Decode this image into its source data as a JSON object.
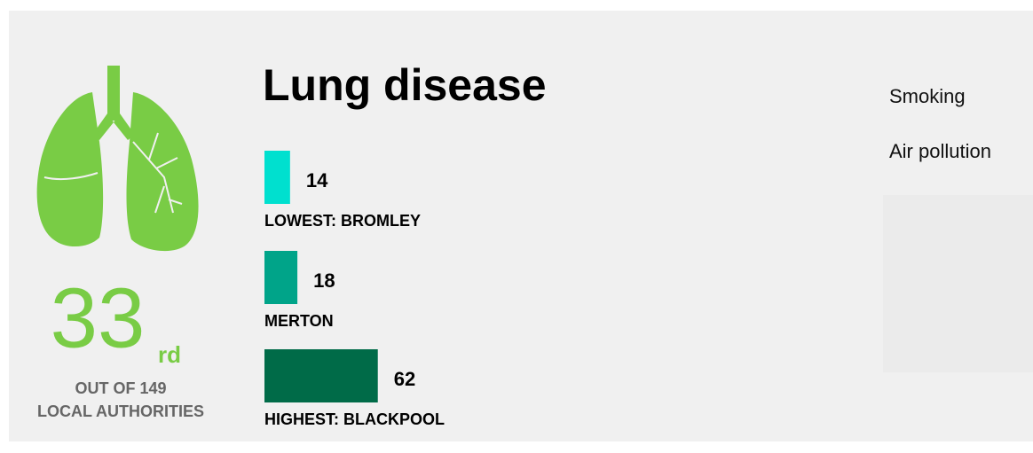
{
  "rank": {
    "number": "33",
    "suffix": "rd",
    "caption_line1": "OUT OF 149",
    "caption_line2": "LOCAL AUTHORITIES"
  },
  "chart_data": {
    "type": "bar",
    "title": "Lung disease",
    "categories": [
      "LOWEST: BROMLEY",
      "MERTON",
      "HIGHEST: BLACKPOOL"
    ],
    "values": [
      14,
      18,
      62
    ],
    "colors": [
      "#00e0cf",
      "#00a489",
      "#006b48"
    ]
  },
  "factors": [
    "Smoking",
    "Air pollution"
  ]
}
